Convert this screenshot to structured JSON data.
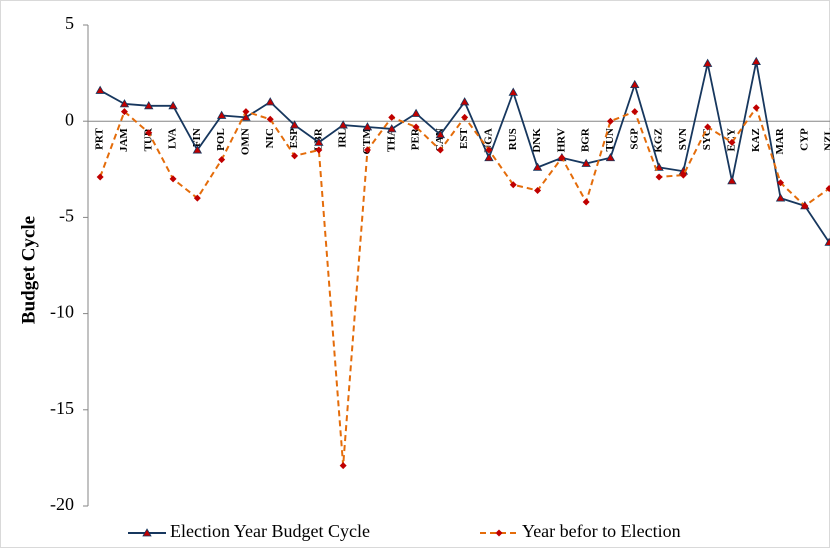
{
  "chart_data": {
    "type": "line",
    "ylabel": "Budget Cycle",
    "categories": [
      "PRT",
      "JAM",
      "TUR",
      "LVA",
      "FIN",
      "POL",
      "OMN",
      "NIC",
      "ESP",
      "LBR",
      "IRL",
      "GTM",
      "THA",
      "PER",
      "CAN",
      "EST",
      "UGA",
      "RUS",
      "DNK",
      "HRV",
      "BGR",
      "TUN",
      "SGP",
      "KGZ",
      "SVN",
      "SYC",
      "ECY",
      "KAZ",
      "MAR",
      "CYP",
      "NZL"
    ],
    "series": [
      {
        "name": "Election Year Budget Cycle",
        "color": "#17375e",
        "marker_color": "#c00000",
        "marker": "triangle",
        "dashed": false,
        "values": [
          1.6,
          0.9,
          0.8,
          0.8,
          -1.5,
          0.3,
          0.2,
          1.0,
          -0.2,
          -1.1,
          -0.2,
          -0.3,
          -0.4,
          0.4,
          -0.7,
          1.0,
          -1.9,
          1.5,
          -2.4,
          -1.9,
          -2.2,
          -1.9,
          1.9,
          -2.4,
          -2.6,
          3.0,
          -3.1,
          3.1,
          -4.0,
          -4.4,
          -6.3
        ]
      },
      {
        "name": "Year befor to Election",
        "color": "#e46c0a",
        "marker_color": "#c00000",
        "marker": "diamond",
        "dashed": true,
        "values": [
          -2.9,
          0.5,
          -0.6,
          -3.0,
          -4.0,
          -2.0,
          0.5,
          0.1,
          -1.8,
          -1.5,
          -17.9,
          -1.5,
          0.2,
          -0.3,
          -1.5,
          0.2,
          -1.5,
          -3.3,
          -3.6,
          -1.9,
          -4.2,
          0.0,
          0.5,
          -2.9,
          -2.8,
          -0.3,
          -1.1,
          0.7,
          -3.2,
          -4.4,
          -3.5
        ]
      }
    ],
    "ylim": [
      -20,
      5
    ],
    "yticks": [
      -20,
      -15,
      -10,
      -5,
      0,
      5
    ],
    "grid": false,
    "legend": "bottom"
  }
}
